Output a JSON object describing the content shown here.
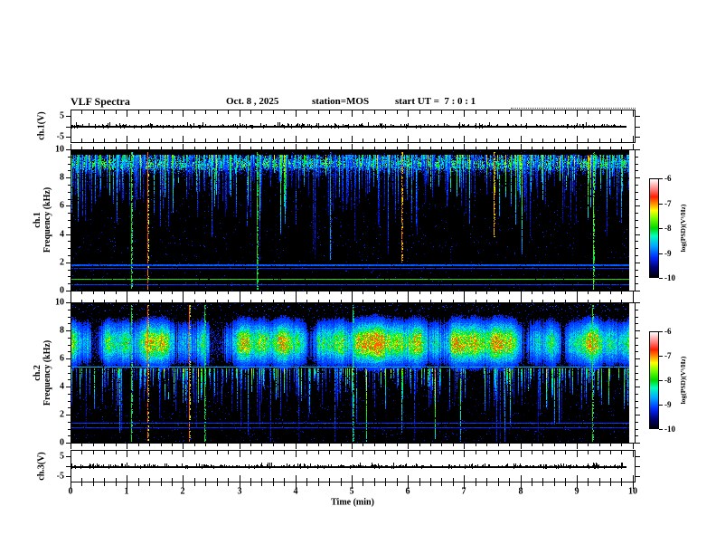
{
  "header": {
    "title": "VLF Spectra",
    "date": "Oct. 8 , 2025",
    "station": "station=MOS",
    "start_ut": "start UT =  7 : 0 : 1"
  },
  "time_axis": {
    "label": "Time (min)",
    "ticks": [
      0,
      1,
      2,
      3,
      4,
      5,
      6,
      7,
      8,
      9,
      10
    ],
    "range_min": [
      0,
      10.05
    ],
    "minor_step_min": 0.2
  },
  "chart_data": {
    "type": "heatmap",
    "title": "VLF Spectra",
    "xlabel": "Time (min)",
    "x_range": [
      0,
      10.05
    ],
    "x_ticks": [
      0,
      1,
      2,
      3,
      4,
      5,
      6,
      7,
      8,
      9,
      10
    ],
    "freq_axis": {
      "label": "Frequency (kHz)",
      "range": [
        0,
        10
      ],
      "ticks": [
        10,
        8,
        6,
        4,
        2,
        0
      ],
      "minor_step": 0.5
    },
    "colorbar": {
      "label": "log(PSD)(V²/Hz)",
      "ticks": [
        -6,
        -7,
        -8,
        -9,
        -10
      ],
      "range": [
        -10,
        -6
      ]
    },
    "palette": [
      {
        "t": 0.0,
        "c": "#000008"
      },
      {
        "t": 0.1,
        "c": "#000078"
      },
      {
        "t": 0.2,
        "c": "#0028ff"
      },
      {
        "t": 0.32,
        "c": "#00aaff"
      },
      {
        "t": 0.42,
        "c": "#00ffbe"
      },
      {
        "t": 0.5,
        "c": "#00d700"
      },
      {
        "t": 0.6,
        "c": "#78ff00"
      },
      {
        "t": 0.68,
        "c": "#ffff00"
      },
      {
        "t": 0.75,
        "c": "#ff8c00"
      },
      {
        "t": 0.82,
        "c": "#ff1e00"
      },
      {
        "t": 0.9,
        "c": "#ff8282"
      },
      {
        "t": 1.0,
        "c": "#ffffff"
      }
    ],
    "panels": [
      {
        "id": "wave1",
        "kind": "waveform",
        "label": "ch.1(V)",
        "ylim": [
          -5,
          5
        ],
        "ytick_labels": [
          "5",
          "-5"
        ],
        "flat_value": 0,
        "seed": 11,
        "spike_count": 260
      },
      {
        "id": "spec1",
        "kind": "spectrogram",
        "label": "ch.1",
        "ylabel": "Frequency (kHz)",
        "seed": 42,
        "top_band": {
          "center_khz": 9.05,
          "sigma": 0.5,
          "lo": 8.2,
          "hi": 9.75
        },
        "streaks": {
          "count": 540,
          "top_khz": 9.65
        },
        "events": [
          {
            "t": 1.07,
            "c": 0.52,
            "depth": 0
          },
          {
            "t": 1.35,
            "c": 0.78,
            "depth": 0
          },
          {
            "t": 3.32,
            "c": 0.52,
            "depth": 0
          },
          {
            "t": 4.62,
            "c": 0.3,
            "depth": 2.2
          },
          {
            "t": 5.9,
            "c": 0.77,
            "depth": 2.0
          },
          {
            "t": 7.55,
            "c": 0.74,
            "depth": 3.8
          },
          {
            "t": 9.33,
            "c": 0.56,
            "depth": 0
          }
        ],
        "hlines": [
          {
            "f": 1.85,
            "c": 0.24,
            "w": 2
          },
          {
            "f": 1.55,
            "c": 0.2,
            "w": 1
          },
          {
            "f": 0.8,
            "c": 0.52,
            "w": 1
          },
          {
            "f": 0.42,
            "c": 0.22,
            "w": 1
          }
        ]
      },
      {
        "id": "spec2",
        "kind": "spectrogram",
        "label": "ch.2",
        "ylabel": "Frequency (kHz)",
        "seed": 77,
        "band": {
          "center_khz": 7.15,
          "sigma": 1.15,
          "lo": 4.7,
          "hi": 9.45
        },
        "streaks": {
          "count": 320,
          "top_khz": 5.3
        },
        "events": [
          {
            "t": 1.07,
            "c": 0.5,
            "depth": 0
          },
          {
            "t": 1.35,
            "c": 0.78,
            "depth": 0
          },
          {
            "t": 2.1,
            "c": 0.77,
            "depth": 0
          },
          {
            "t": 2.38,
            "c": 0.5,
            "depth": 0
          },
          {
            "t": 5.02,
            "c": 0.45,
            "depth": 0
          },
          {
            "t": 9.3,
            "c": 0.52,
            "depth": 0
          }
        ],
        "hlines": [
          {
            "f": 5.4,
            "c": 0.33,
            "w": 1
          },
          {
            "f": 1.35,
            "c": 0.22,
            "w": 1
          },
          {
            "f": 1.05,
            "c": 0.2,
            "w": 1
          }
        ]
      },
      {
        "id": "wave3",
        "kind": "waveform",
        "label": "ch.3(V)",
        "ylim": [
          -5,
          5
        ],
        "ytick_labels": [
          "5",
          "-5"
        ],
        "flat_value": 0,
        "seed": 33,
        "spike_count": 300
      }
    ]
  }
}
